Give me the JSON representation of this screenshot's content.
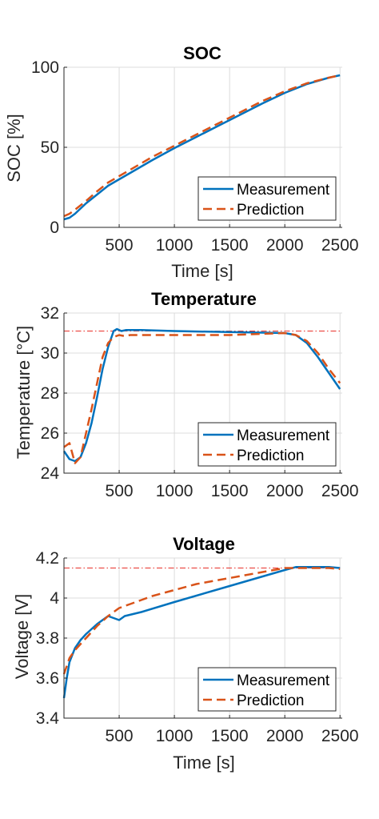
{
  "colors": {
    "measurement": "#0072BD",
    "prediction": "#D95319",
    "limit": "#E8302A",
    "grid": "#dcdcdc",
    "axis": "#262626"
  },
  "chart_data": [
    {
      "type": "line",
      "title": "SOC",
      "xlabel": "Time [s]",
      "ylabel": "SOC [%]",
      "xlim": [
        0,
        2520
      ],
      "ylim": [
        0,
        100
      ],
      "xticks": [
        500,
        1000,
        1500,
        2000,
        2500
      ],
      "yticks": [
        0,
        50,
        100
      ],
      "grid": true,
      "legend": {
        "position": "bottom-right",
        "entries": [
          "Measurement",
          "Prediction"
        ]
      },
      "series": [
        {
          "name": "Measurement",
          "style": "solid",
          "x": [
            0,
            50,
            100,
            200,
            300,
            400,
            500,
            600,
            800,
            1000,
            1200,
            1400,
            1600,
            1800,
            2000,
            2200,
            2400,
            2500
          ],
          "y": [
            5,
            6,
            8.5,
            15,
            20.5,
            26,
            30,
            34,
            42,
            49.5,
            56.5,
            63.5,
            70.5,
            77.5,
            84,
            89.5,
            93.5,
            95
          ]
        },
        {
          "name": "Prediction",
          "style": "dashed",
          "x": [
            0,
            50,
            100,
            200,
            300,
            400,
            500,
            600,
            800,
            1000,
            1200,
            1400,
            1600,
            1800,
            2000,
            2200,
            2400,
            2500
          ],
          "y": [
            7,
            8.5,
            11,
            16.5,
            22.5,
            28,
            32,
            36,
            44,
            51,
            58,
            65,
            72,
            79,
            85,
            90,
            93.5,
            95
          ]
        }
      ]
    },
    {
      "type": "line",
      "title": "Temperature",
      "xlabel": "",
      "ylabel": "Temperature [°C]",
      "xlim": [
        0,
        2520
      ],
      "ylim": [
        24,
        32
      ],
      "xticks": [
        500,
        1000,
        1500,
        2000,
        2500
      ],
      "yticks": [
        24,
        26,
        28,
        30,
        32
      ],
      "grid": true,
      "limit_line": 31.1,
      "legend": {
        "position": "bottom-right",
        "entries": [
          "Measurement",
          "Prediction"
        ]
      },
      "series": [
        {
          "name": "Measurement",
          "style": "solid",
          "x": [
            0,
            50,
            100,
            150,
            200,
            250,
            300,
            350,
            400,
            450,
            480,
            520,
            560,
            700,
            1000,
            1500,
            2000,
            2100,
            2200,
            2300,
            2400,
            2500
          ],
          "y": [
            25.1,
            24.7,
            24.6,
            24.8,
            25.5,
            26.5,
            27.8,
            29.2,
            30.3,
            31.1,
            31.2,
            31.1,
            31.15,
            31.15,
            31.1,
            31.05,
            31,
            30.9,
            30.5,
            29.8,
            29,
            28.2
          ]
        },
        {
          "name": "Prediction",
          "style": "dashed",
          "x": [
            0,
            50,
            100,
            150,
            200,
            250,
            300,
            350,
            400,
            450,
            500,
            550,
            600,
            700,
            1000,
            1500,
            2000,
            2100,
            2200,
            2300,
            2400,
            2500
          ],
          "y": [
            25.3,
            25.5,
            24.5,
            24.8,
            26,
            27.2,
            28.5,
            29.8,
            30.5,
            30.8,
            30.9,
            30.85,
            30.9,
            30.9,
            30.9,
            30.9,
            31,
            30.9,
            30.6,
            30,
            29.2,
            28.5
          ]
        }
      ]
    },
    {
      "type": "line",
      "title": "Voltage",
      "xlabel": "Time [s]",
      "ylabel": "Voltage [V]",
      "xlim": [
        0,
        2520
      ],
      "ylim": [
        3.4,
        4.2
      ],
      "xticks": [
        500,
        1000,
        1500,
        2000,
        2500
      ],
      "yticks": [
        3.4,
        3.6,
        3.8,
        4,
        4.2
      ],
      "grid": true,
      "limit_line": 4.15,
      "legend": {
        "position": "bottom-right",
        "entries": [
          "Measurement",
          "Prediction"
        ]
      },
      "series": [
        {
          "name": "Measurement",
          "style": "solid",
          "x": [
            0,
            25,
            50,
            100,
            150,
            200,
            300,
            400,
            450,
            500,
            550,
            700,
            1000,
            1500,
            2000,
            2100,
            2200,
            2300,
            2400,
            2500
          ],
          "y": [
            3.5,
            3.6,
            3.68,
            3.75,
            3.79,
            3.82,
            3.87,
            3.91,
            3.9,
            3.89,
            3.91,
            3.93,
            3.98,
            4.06,
            4.14,
            4.155,
            4.155,
            4.155,
            4.155,
            4.15
          ]
        },
        {
          "name": "Prediction",
          "style": "dashed",
          "x": [
            0,
            50,
            100,
            200,
            300,
            400,
            450,
            500,
            600,
            700,
            800,
            1000,
            1200,
            1400,
            1600,
            1800,
            2000,
            2100,
            2200,
            2300,
            2400,
            2500
          ],
          "y": [
            3.62,
            3.7,
            3.74,
            3.8,
            3.86,
            3.91,
            3.93,
            3.95,
            3.97,
            3.99,
            4.01,
            4.04,
            4.07,
            4.09,
            4.11,
            4.13,
            4.15,
            4.15,
            4.15,
            4.15,
            4.15,
            4.145
          ]
        }
      ]
    }
  ]
}
